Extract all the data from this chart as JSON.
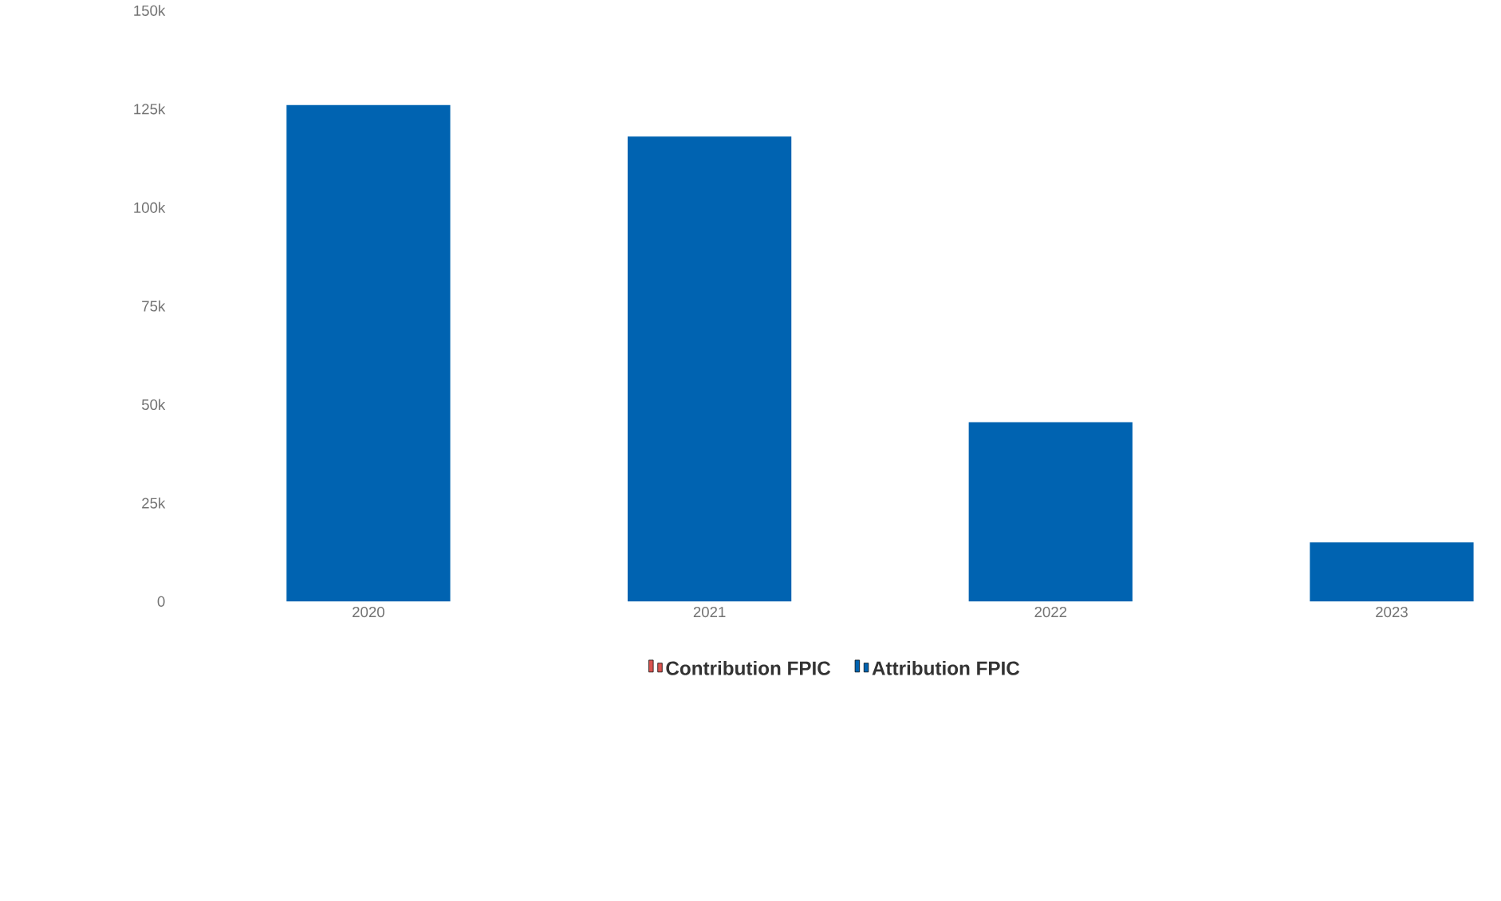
{
  "chart_data": {
    "type": "bar",
    "categories": [
      "2020",
      "2021",
      "2022",
      "2023"
    ],
    "series": [
      {
        "name": "Contribution FPIC",
        "color": "#d9534f",
        "values": [
          0,
          0,
          0,
          0
        ]
      },
      {
        "name": "Attribution FPIC",
        "color": "#0063b1",
        "values": [
          126000,
          118000,
          45500,
          15000
        ]
      }
    ],
    "ylim": [
      0,
      150000
    ],
    "yticks": [
      {
        "value": 0,
        "label": "0"
      },
      {
        "value": 25000,
        "label": "25k"
      },
      {
        "value": 50000,
        "label": "50k"
      },
      {
        "value": 75000,
        "label": "75k"
      },
      {
        "value": 100000,
        "label": "100k"
      },
      {
        "value": 125000,
        "label": "125k"
      },
      {
        "value": 150000,
        "label": "150k"
      }
    ],
    "grid": false,
    "legend": "bottom"
  }
}
